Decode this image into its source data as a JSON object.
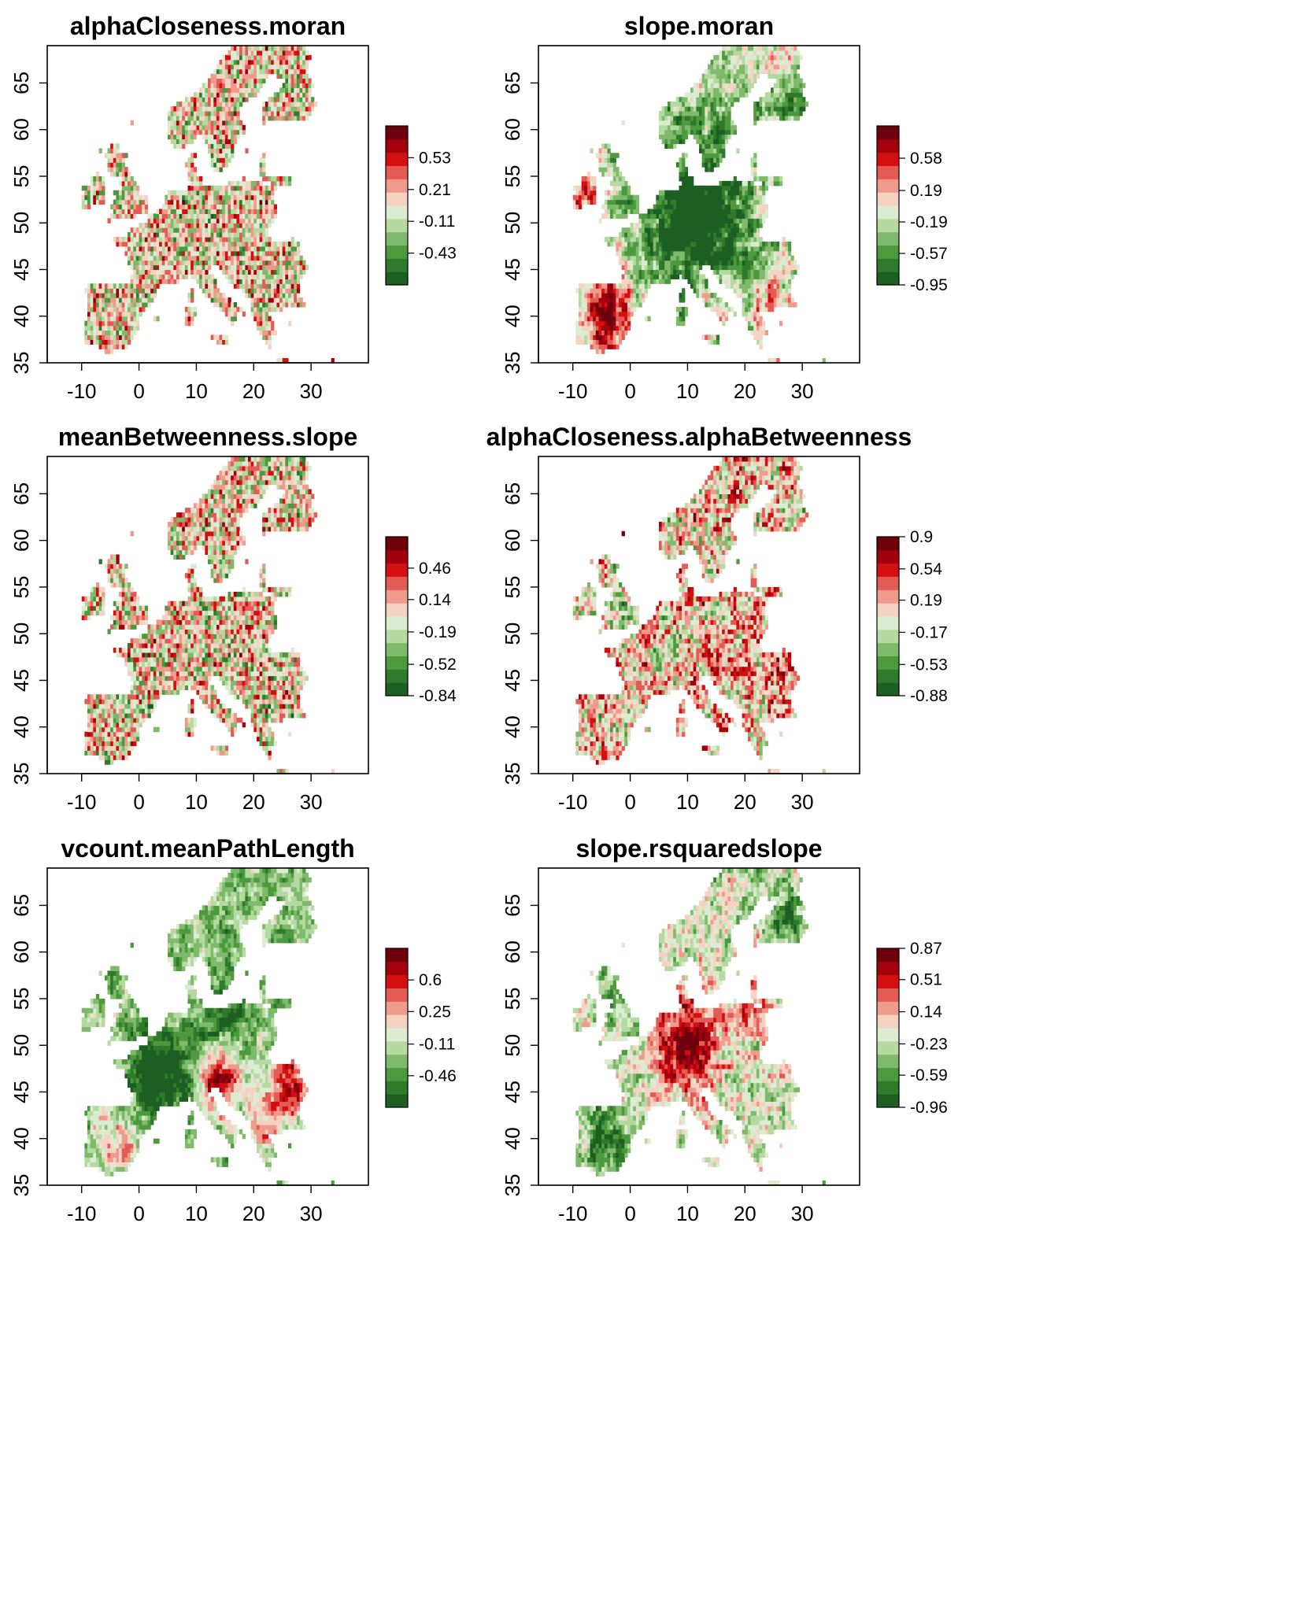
{
  "chart_data": [
    {
      "type": "heatmap",
      "title": "alphaCloseness.moran",
      "xlim": [
        -16,
        40
      ],
      "ylim": [
        35,
        69
      ],
      "x_ticks": [
        "-10",
        "0",
        "10",
        "20",
        "30"
      ],
      "y_ticks": [
        "35",
        "40",
        "45",
        "50",
        "55",
        "60",
        "65"
      ],
      "legend": {
        "position": "right",
        "range": [
          -0.75,
          0.85
        ],
        "tick_values": [
          0.53,
          0.21,
          -0.11,
          -0.43
        ],
        "tick_labels": [
          "0.53",
          "0.21",
          "-0.11",
          "-0.43"
        ]
      },
      "pattern": "mixed"
    },
    {
      "type": "heatmap",
      "title": "slope.moran",
      "xlim": [
        -16,
        40
      ],
      "ylim": [
        35,
        69
      ],
      "x_ticks": [
        "-10",
        "0",
        "10",
        "20",
        "30"
      ],
      "y_ticks": [
        "35",
        "40",
        "45",
        "50",
        "55",
        "60",
        "65"
      ],
      "legend": {
        "position": "right",
        "range": [
          -0.95,
          0.97
        ],
        "tick_values": [
          0.58,
          0.19,
          -0.19,
          -0.57,
          -0.95
        ],
        "tick_labels": [
          "0.58",
          "0.19",
          "-0.19",
          "-0.57",
          "-0.95"
        ]
      },
      "pattern": "slope"
    },
    {
      "type": "heatmap",
      "title": "meanBetweenness.slope",
      "xlim": [
        -16,
        40
      ],
      "ylim": [
        35,
        69
      ],
      "x_ticks": [
        "-10",
        "0",
        "10",
        "20",
        "30"
      ],
      "y_ticks": [
        "35",
        "40",
        "45",
        "50",
        "55",
        "60",
        "65"
      ],
      "legend": {
        "position": "right",
        "range": [
          -0.84,
          0.78
        ],
        "tick_values": [
          0.46,
          0.14,
          -0.19,
          -0.52,
          -0.84
        ],
        "tick_labels": [
          "0.46",
          "0.14",
          "-0.19",
          "-0.52",
          "-0.84"
        ]
      },
      "pattern": "mixed"
    },
    {
      "type": "heatmap",
      "title": "alphaCloseness.alphaBetweenness",
      "xlim": [
        -16,
        40
      ],
      "ylim": [
        35,
        69
      ],
      "x_ticks": [
        "-10",
        "0",
        "10",
        "20",
        "30"
      ],
      "y_ticks": [
        "35",
        "40",
        "45",
        "50",
        "55",
        "60",
        "65"
      ],
      "legend": {
        "position": "right",
        "range": [
          -0.88,
          0.9
        ],
        "tick_values": [
          0.9,
          0.54,
          0.19,
          -0.17,
          -0.53,
          -0.88
        ],
        "tick_labels": [
          "0.9",
          "0.54",
          "0.19",
          "-0.17",
          "-0.53",
          "-0.88"
        ]
      },
      "pattern": "mixedRed"
    },
    {
      "type": "heatmap",
      "title": "vcount.meanPathLength",
      "xlim": [
        -16,
        40
      ],
      "ylim": [
        35,
        69
      ],
      "x_ticks": [
        "-10",
        "0",
        "10",
        "20",
        "30"
      ],
      "y_ticks": [
        "35",
        "40",
        "45",
        "50",
        "55",
        "60",
        "65"
      ],
      "legend": {
        "position": "right",
        "range": [
          -0.81,
          0.95
        ],
        "tick_values": [
          0.6,
          0.25,
          -0.11,
          -0.46
        ],
        "tick_labels": [
          "0.6",
          "0.25",
          "-0.11",
          "-0.46"
        ]
      },
      "pattern": "vcount"
    },
    {
      "type": "heatmap",
      "title": "slope.rsquaredslope",
      "xlim": [
        -16,
        40
      ],
      "ylim": [
        35,
        69
      ],
      "x_ticks": [
        "-10",
        "0",
        "10",
        "20",
        "30"
      ],
      "y_ticks": [
        "35",
        "40",
        "45",
        "50",
        "55",
        "60",
        "65"
      ],
      "legend": {
        "position": "right",
        "range": [
          -0.96,
          0.87
        ],
        "tick_values": [
          0.87,
          0.51,
          0.14,
          -0.23,
          -0.59,
          -0.96
        ],
        "tick_labels": [
          "0.87",
          "0.51",
          "0.14",
          "-0.23",
          "-0.59",
          "-0.96"
        ]
      },
      "pattern": "rsq"
    }
  ]
}
